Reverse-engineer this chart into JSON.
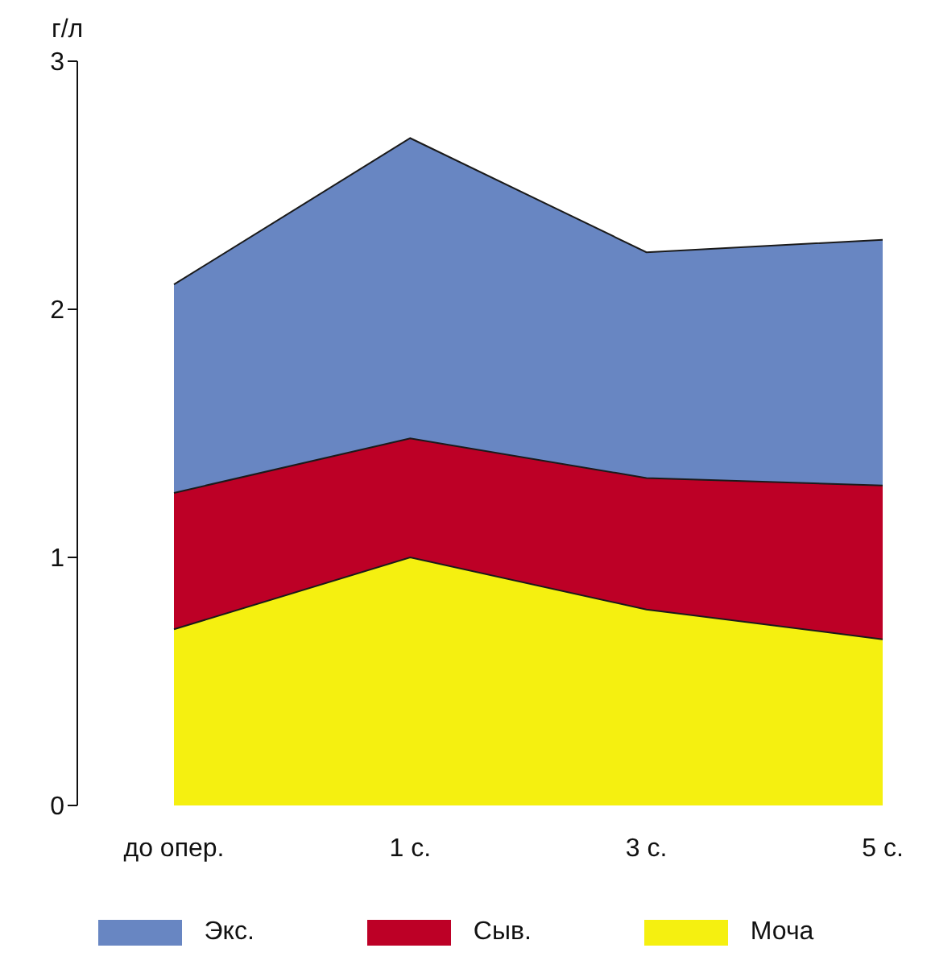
{
  "chart_data": {
    "type": "area",
    "ylabel": "г/л",
    "categories": [
      "до опер.",
      "1 с.",
      "3 с.",
      "5 с."
    ],
    "series": [
      {
        "name": "Экс.",
        "color": "#6886c2",
        "values": [
          2.1,
          2.69,
          2.23,
          2.28
        ]
      },
      {
        "name": "Сыв.",
        "color": "#bd0026",
        "values": [
          1.26,
          1.48,
          1.32,
          1.29
        ]
      },
      {
        "name": "Моча",
        "color": "#f5f010",
        "values": [
          0.71,
          1.0,
          0.79,
          0.67
        ]
      }
    ],
    "ylim": [
      0,
      3
    ],
    "yticks": [
      0,
      1,
      2,
      3
    ],
    "grid": false,
    "legend": "bottom"
  }
}
